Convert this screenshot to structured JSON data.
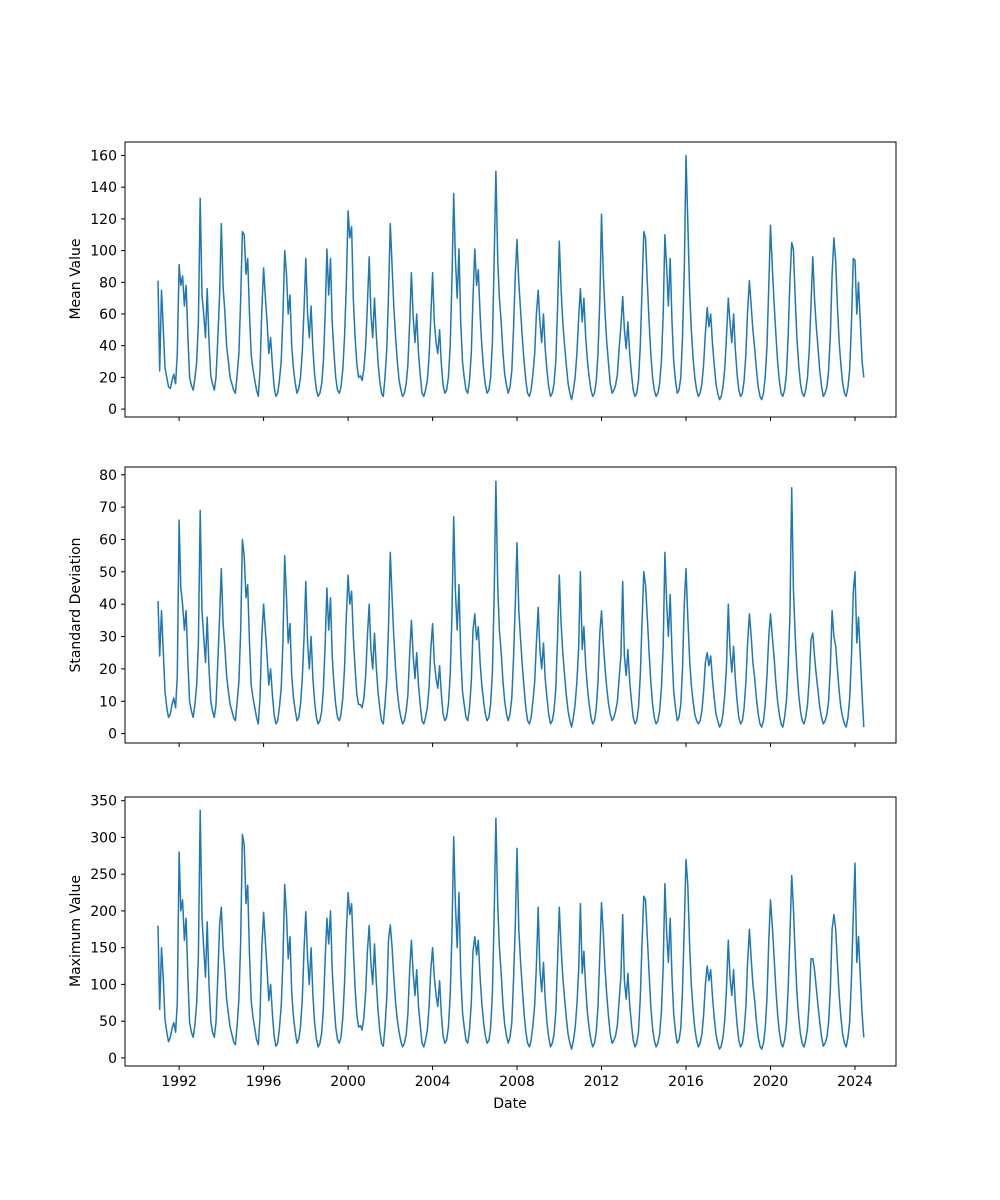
{
  "figure": {
    "background_color": "#ffffff",
    "series_color": "#1f77b4",
    "spine_color": "#000000"
  },
  "x_axis": {
    "label": "Date",
    "tick_years": [
      1992,
      1996,
      2000,
      2004,
      2008,
      2012,
      2016,
      2020,
      2024
    ],
    "start_year": 1991.0,
    "step_years": 0.0833333,
    "lim": [
      1989.44,
      2025.94
    ]
  },
  "chart_data": [
    {
      "type": "line",
      "name": "mean-value",
      "ylabel": "Mean Value",
      "yticks": [
        0,
        20,
        40,
        60,
        80,
        100,
        120,
        140,
        160
      ],
      "ylim": [
        -5,
        168.5
      ],
      "values": [
        81,
        24,
        75,
        52,
        26,
        20,
        14,
        13,
        18,
        22,
        16,
        35,
        91,
        78,
        84,
        65,
        78,
        46,
        20,
        15,
        12,
        19,
        30,
        55,
        133,
        72,
        60,
        45,
        76,
        43,
        21,
        16,
        12,
        20,
        44,
        72,
        117,
        77,
        62,
        40,
        30,
        20,
        16,
        12,
        10,
        22,
        35,
        70,
        112,
        110,
        85,
        95,
        60,
        34,
        25,
        18,
        12,
        8,
        24,
        62,
        89,
        71,
        55,
        35,
        45,
        28,
        14,
        8,
        10,
        18,
        30,
        58,
        100,
        85,
        60,
        72,
        40,
        25,
        16,
        10,
        13,
        20,
        36,
        64,
        95,
        60,
        45,
        65,
        38,
        22,
        12,
        8,
        10,
        16,
        30,
        60,
        101,
        72,
        95,
        55,
        35,
        20,
        12,
        10,
        14,
        25,
        45,
        78,
        125,
        108,
        115,
        70,
        45,
        28,
        20,
        21,
        18,
        25,
        40,
        66,
        96,
        60,
        45,
        70,
        48,
        30,
        18,
        10,
        8,
        20,
        38,
        72,
        117,
        90,
        65,
        45,
        30,
        18,
        12,
        8,
        10,
        16,
        28,
        55,
        86,
        58,
        42,
        60,
        35,
        22,
        10,
        8,
        12,
        18,
        32,
        58,
        86,
        55,
        42,
        35,
        50,
        28,
        15,
        10,
        12,
        20,
        40,
        80,
        136,
        95,
        70,
        101,
        55,
        30,
        20,
        12,
        10,
        18,
        35,
        70,
        101,
        78,
        88,
        60,
        40,
        25,
        15,
        10,
        12,
        20,
        42,
        95,
        150,
        95,
        70,
        55,
        35,
        22,
        15,
        10,
        14,
        24,
        50,
        85,
        107,
        80,
        62,
        45,
        30,
        18,
        10,
        8,
        12,
        22,
        35,
        60,
        75,
        55,
        42,
        60,
        38,
        24,
        14,
        8,
        10,
        16,
        30,
        62,
        106,
        75,
        55,
        40,
        28,
        16,
        10,
        6,
        12,
        20,
        35,
        58,
        76,
        55,
        70,
        45,
        30,
        20,
        12,
        8,
        10,
        18,
        35,
        68,
        123,
        85,
        60,
        42,
        28,
        16,
        10,
        12,
        15,
        22,
        38,
        52,
        71,
        50,
        38,
        55,
        35,
        22,
        12,
        8,
        10,
        18,
        40,
        75,
        112,
        108,
        80,
        55,
        35,
        20,
        12,
        8,
        10,
        16,
        30,
        60,
        110,
        89,
        65,
        95,
        55,
        30,
        18,
        10,
        12,
        20,
        45,
        88,
        160,
        118,
        75,
        50,
        32,
        20,
        12,
        8,
        10,
        16,
        28,
        48,
        64,
        52,
        60,
        42,
        28,
        16,
        10,
        6,
        8,
        14,
        26,
        46,
        70,
        55,
        42,
        60,
        38,
        22,
        12,
        8,
        10,
        18,
        35,
        62,
        81,
        65,
        50,
        38,
        25,
        14,
        8,
        6,
        10,
        20,
        40,
        78,
        116,
        90,
        68,
        48,
        30,
        18,
        10,
        8,
        12,
        22,
        45,
        80,
        105,
        101,
        70,
        45,
        28,
        16,
        10,
        8,
        12,
        20,
        38,
        66,
        96,
        70,
        52,
        38,
        24,
        14,
        8,
        10,
        14,
        24,
        48,
        85,
        108,
        93,
        65,
        42,
        28,
        16,
        10,
        8,
        14,
        25,
        55,
        95,
        94,
        60,
        80,
        55,
        30,
        20
      ]
    },
    {
      "type": "line",
      "name": "standard-deviation",
      "ylabel": "Standard Deviation",
      "yticks": [
        0,
        10,
        20,
        30,
        40,
        50,
        60,
        70,
        80
      ],
      "ylim": [
        -2.9,
        82.4
      ],
      "values": [
        41,
        24,
        38,
        26,
        13,
        8,
        5,
        6,
        9,
        11,
        8,
        18,
        66,
        45,
        40,
        32,
        38,
        22,
        10,
        7,
        5,
        9,
        15,
        28,
        69,
        38,
        30,
        22,
        36,
        20,
        10,
        7,
        5,
        9,
        22,
        36,
        51,
        34,
        27,
        18,
        13,
        9,
        7,
        5,
        4,
        10,
        16,
        32,
        60,
        55,
        42,
        46,
        28,
        15,
        11,
        8,
        5,
        3,
        11,
        30,
        40,
        32,
        24,
        15,
        20,
        12,
        6,
        3,
        4,
        8,
        14,
        28,
        55,
        42,
        28,
        34,
        18,
        11,
        7,
        4,
        5,
        9,
        17,
        30,
        47,
        28,
        20,
        30,
        17,
        10,
        5,
        3,
        4,
        7,
        14,
        28,
        45,
        32,
        42,
        24,
        15,
        9,
        5,
        4,
        6,
        11,
        20,
        36,
        49,
        40,
        44,
        30,
        20,
        12,
        9,
        9,
        8,
        11,
        18,
        30,
        40,
        26,
        20,
        31,
        21,
        13,
        8,
        4,
        3,
        9,
        17,
        33,
        56,
        42,
        30,
        20,
        13,
        8,
        5,
        3,
        4,
        7,
        12,
        25,
        35,
        24,
        17,
        25,
        15,
        9,
        4,
        3,
        5,
        8,
        14,
        26,
        34,
        22,
        17,
        14,
        21,
        12,
        6,
        4,
        5,
        9,
        18,
        36,
        67,
        44,
        32,
        46,
        25,
        13,
        9,
        5,
        4,
        8,
        16,
        32,
        37,
        29,
        33,
        22,
        15,
        10,
        6,
        4,
        5,
        9,
        19,
        43,
        78,
        46,
        32,
        25,
        16,
        10,
        6,
        4,
        6,
        11,
        23,
        40,
        59,
        38,
        29,
        21,
        14,
        8,
        4,
        3,
        5,
        10,
        16,
        28,
        39,
        26,
        20,
        28,
        17,
        11,
        6,
        3,
        4,
        7,
        14,
        29,
        49,
        34,
        25,
        18,
        12,
        7,
        4,
        2,
        5,
        9,
        16,
        27,
        50,
        26,
        33,
        21,
        14,
        9,
        5,
        3,
        4,
        8,
        16,
        31,
        38,
        28,
        20,
        14,
        9,
        6,
        4,
        5,
        7,
        10,
        17,
        24,
        47,
        24,
        18,
        26,
        16,
        10,
        5,
        3,
        4,
        8,
        18,
        34,
        50,
        46,
        36,
        25,
        16,
        9,
        5,
        3,
        4,
        7,
        14,
        27,
        56,
        40,
        30,
        43,
        25,
        13,
        8,
        4,
        5,
        9,
        20,
        40,
        51,
        36,
        23,
        15,
        10,
        6,
        4,
        3,
        4,
        7,
        13,
        22,
        25,
        21,
        24,
        17,
        11,
        6,
        4,
        2,
        3,
        6,
        12,
        21,
        40,
        26,
        19,
        27,
        17,
        10,
        5,
        3,
        4,
        8,
        16,
        28,
        37,
        30,
        22,
        17,
        11,
        6,
        3,
        2,
        4,
        9,
        18,
        30,
        37,
        30,
        24,
        16,
        10,
        6,
        3,
        2,
        5,
        10,
        20,
        36,
        76,
        45,
        30,
        20,
        12,
        7,
        4,
        3,
        5,
        9,
        17,
        29,
        31,
        24,
        18,
        13,
        8,
        5,
        3,
        4,
        6,
        10,
        21,
        38,
        30,
        27,
        20,
        13,
        8,
        5,
        3,
        2,
        5,
        11,
        24,
        44,
        50,
        28,
        36,
        24,
        12,
        2
      ]
    },
    {
      "type": "line",
      "name": "maximum-value",
      "ylabel": "Maximum Value",
      "yticks": [
        0,
        50,
        100,
        150,
        200,
        250,
        300,
        350
      ],
      "ylim": [
        -11,
        355
      ],
      "values": [
        180,
        66,
        150,
        110,
        52,
        35,
        22,
        28,
        40,
        48,
        35,
        75,
        280,
        200,
        215,
        160,
        190,
        110,
        48,
        35,
        28,
        45,
        75,
        140,
        337,
        190,
        150,
        110,
        185,
        100,
        50,
        35,
        28,
        48,
        110,
        180,
        205,
        150,
        120,
        80,
        60,
        42,
        32,
        22,
        18,
        45,
        80,
        160,
        304,
        290,
        210,
        235,
        140,
        78,
        55,
        40,
        25,
        18,
        55,
        150,
        198,
        160,
        120,
        78,
        100,
        60,
        30,
        16,
        20,
        40,
        70,
        130,
        236,
        195,
        135,
        165,
        90,
        55,
        35,
        20,
        26,
        42,
        80,
        150,
        199,
        135,
        100,
        150,
        85,
        48,
        26,
        15,
        20,
        34,
        68,
        135,
        190,
        155,
        200,
        120,
        75,
        42,
        25,
        20,
        28,
        55,
        100,
        170,
        225,
        195,
        210,
        150,
        95,
        58,
        42,
        44,
        38,
        55,
        90,
        145,
        180,
        130,
        100,
        155,
        105,
        65,
        38,
        20,
        16,
        42,
        82,
        160,
        181,
        150,
        110,
        75,
        52,
        35,
        22,
        15,
        20,
        32,
        60,
        120,
        160,
        115,
        85,
        120,
        70,
        45,
        20,
        15,
        24,
        38,
        68,
        120,
        150,
        110,
        85,
        70,
        105,
        58,
        30,
        20,
        24,
        42,
        85,
        165,
        301,
        210,
        150,
        225,
        115,
        62,
        42,
        24,
        20,
        38,
        75,
        145,
        165,
        140,
        160,
        110,
        75,
        48,
        30,
        20,
        24,
        40,
        88,
        195,
        326,
        210,
        150,
        115,
        72,
        45,
        30,
        20,
        28,
        48,
        105,
        180,
        285,
        175,
        130,
        95,
        60,
        36,
        20,
        15,
        24,
        44,
        72,
        125,
        205,
        120,
        90,
        130,
        80,
        48,
        28,
        15,
        20,
        32,
        62,
        130,
        205,
        150,
        110,
        80,
        55,
        32,
        20,
        12,
        24,
        40,
        72,
        120,
        210,
        115,
        145,
        95,
        60,
        40,
        24,
        15,
        20,
        36,
        70,
        140,
        211,
        170,
        120,
        85,
        55,
        32,
        20,
        24,
        30,
        45,
        78,
        110,
        195,
        105,
        80,
        115,
        72,
        45,
        24,
        15,
        20,
        36,
        82,
        155,
        220,
        215,
        165,
        115,
        70,
        40,
        24,
        15,
        20,
        32,
        62,
        125,
        237,
        170,
        130,
        190,
        110,
        60,
        35,
        20,
        24,
        40,
        92,
        180,
        270,
        235,
        155,
        100,
        65,
        40,
        24,
        15,
        20,
        32,
        58,
        100,
        125,
        105,
        120,
        85,
        55,
        32,
        20,
        12,
        16,
        28,
        52,
        95,
        160,
        110,
        85,
        120,
        75,
        45,
        24,
        15,
        20,
        36,
        70,
        130,
        175,
        135,
        100,
        78,
        50,
        28,
        16,
        12,
        20,
        40,
        82,
        160,
        215,
        180,
        140,
        95,
        60,
        36,
        20,
        15,
        24,
        45,
        92,
        165,
        248,
        205,
        140,
        90,
        55,
        32,
        20,
        15,
        24,
        40,
        78,
        135,
        135,
        120,
        95,
        70,
        48,
        28,
        16,
        20,
        28,
        48,
        95,
        175,
        195,
        175,
        130,
        85,
        55,
        32,
        20,
        15,
        28,
        50,
        110,
        195,
        265,
        130,
        165,
        110,
        60,
        28
      ]
    }
  ]
}
